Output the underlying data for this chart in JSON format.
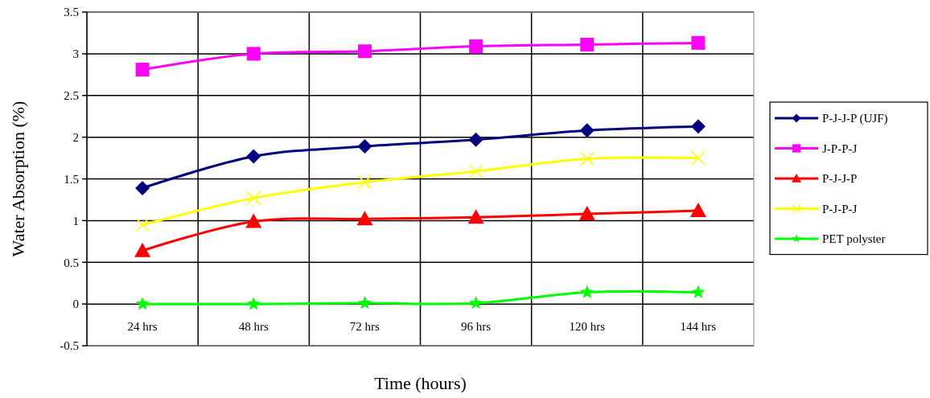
{
  "chart_data": {
    "type": "line",
    "xlabel": "Time (hours)",
    "ylabel": "Water Absorption (%)",
    "categories": [
      "24 hrs",
      "48 hrs",
      "72 hrs",
      "96 hrs",
      "120 hrs",
      "144 hrs"
    ],
    "ylim": [
      -0.5,
      3.5
    ],
    "yticks": [
      -0.5,
      0,
      0.5,
      1,
      1.5,
      2,
      2.5,
      3,
      3.5
    ],
    "grid": true,
    "legend": "right",
    "series": [
      {
        "name": "P-J-J-P (UJF)",
        "color": "#000080",
        "marker": "diamond",
        "values": [
          1.39,
          1.77,
          1.89,
          1.97,
          2.08,
          2.13
        ]
      },
      {
        "name": "J-P-P-J",
        "color": "#ff00ff",
        "marker": "square",
        "values": [
          2.81,
          3.0,
          3.03,
          3.09,
          3.11,
          3.13
        ]
      },
      {
        "name": "P-J-J-P",
        "color": "#ff0000",
        "marker": "triangle",
        "values": [
          0.64,
          0.99,
          1.02,
          1.04,
          1.08,
          1.12
        ]
      },
      {
        "name": "P-J-P-J",
        "color": "#ffff00",
        "marker": "cross",
        "values": [
          0.95,
          1.27,
          1.46,
          1.59,
          1.74,
          1.75
        ]
      },
      {
        "name": "PET polyster",
        "color": "#00ff00",
        "marker": "star",
        "values": [
          0,
          0,
          0.01,
          0.01,
          0.14,
          0.14
        ]
      }
    ]
  }
}
